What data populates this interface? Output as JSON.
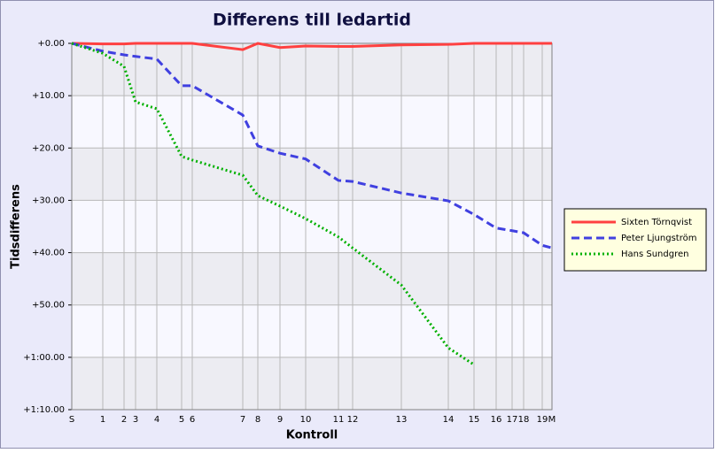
{
  "chart_data": {
    "type": "line",
    "title": "Differens till ledartid",
    "xlabel": "Kontroll",
    "ylabel": "Tidsdifferens",
    "x": [
      0,
      35,
      59,
      72,
      96,
      124,
      136,
      193,
      210,
      235,
      264,
      301,
      317,
      372,
      425,
      454,
      479,
      497,
      510,
      531,
      542
    ],
    "xlim": [
      0,
      542
    ],
    "xticks": [
      {
        "value": 0,
        "label": "S"
      },
      {
        "value": 35,
        "label": "1"
      },
      {
        "value": 59,
        "label": "2"
      },
      {
        "value": 72,
        "label": "3"
      },
      {
        "value": 96,
        "label": "4"
      },
      {
        "value": 124,
        "label": "5"
      },
      {
        "value": 136,
        "label": "6"
      },
      {
        "value": 193,
        "label": "7"
      },
      {
        "value": 210,
        "label": "8"
      },
      {
        "value": 235,
        "label": "9"
      },
      {
        "value": 264,
        "label": "10"
      },
      {
        "value": 301,
        "label": "11"
      },
      {
        "value": 317,
        "label": "12"
      },
      {
        "value": 372,
        "label": "13"
      },
      {
        "value": 425,
        "label": "14"
      },
      {
        "value": 454,
        "label": "15"
      },
      {
        "value": 479,
        "label": "16"
      },
      {
        "value": 497,
        "label": "17"
      },
      {
        "value": 510,
        "label": "18"
      },
      {
        "value": 531,
        "label": "19"
      },
      {
        "value": 542,
        "label": "M"
      }
    ],
    "ylim": [
      0,
      70
    ],
    "y_inverted": true,
    "yticks": [
      {
        "value": 0,
        "label": "+0.00"
      },
      {
        "value": 10,
        "label": "+10.00"
      },
      {
        "value": 20,
        "label": "+20.00"
      },
      {
        "value": 30,
        "label": "+30.00"
      },
      {
        "value": 40,
        "label": "+40.00"
      },
      {
        "value": 50,
        "label": "+50.00"
      },
      {
        "value": 60,
        "label": "+1:00.00"
      },
      {
        "value": 70,
        "label": "+1:10.00"
      }
    ],
    "grid": true,
    "legend": "right",
    "series": [
      {
        "name": "Sixten Törnqvist",
        "color": "#ff4040",
        "dash": "solid",
        "values": [
          0,
          0.1,
          0.1,
          0,
          0,
          0,
          0,
          1.2,
          0,
          0.8,
          0.5,
          0.6,
          0.6,
          0.3,
          0.2,
          0,
          0,
          0,
          0,
          0,
          0
        ]
      },
      {
        "name": "Peter Ljungström",
        "color": "#4040e0",
        "dash": "dashed",
        "values": [
          0,
          1.5,
          2.2,
          2.5,
          3.0,
          8.1,
          8.1,
          13.7,
          19.6,
          21,
          22.1,
          26.2,
          26.4,
          28.6,
          30.1,
          32.7,
          35.3,
          35.8,
          36.2,
          38.6,
          39.1
        ]
      },
      {
        "name": "Hans Sundgren",
        "color": "#00b000",
        "dash": "dotted",
        "values": [
          0,
          1.9,
          4.4,
          11.2,
          12.5,
          21.6,
          22.3,
          25.2,
          29.1,
          31.1,
          33.5,
          37,
          39.1,
          46.2,
          58.2,
          61.4,
          null,
          null,
          null,
          null,
          null
        ]
      }
    ]
  }
}
